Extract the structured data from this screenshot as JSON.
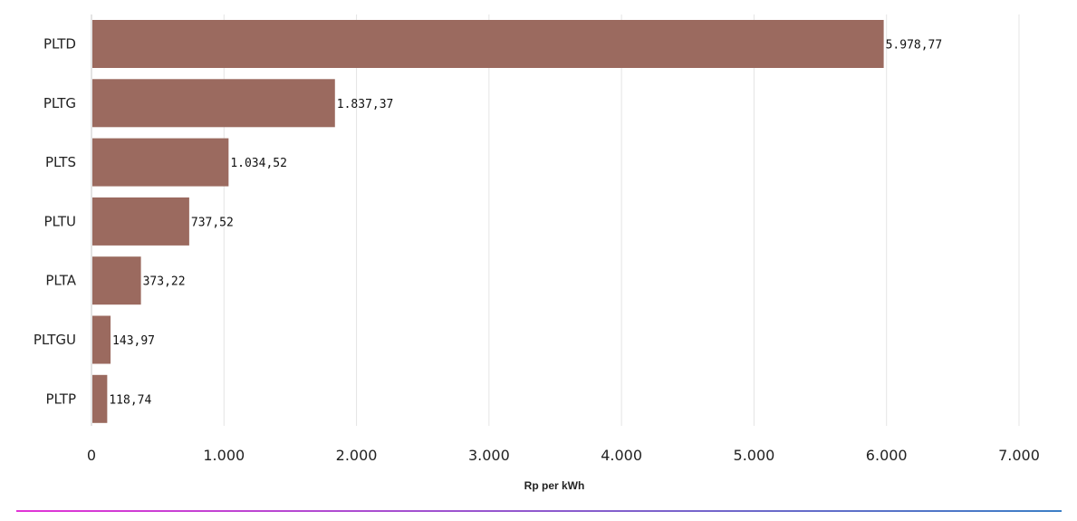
{
  "chart_data": {
    "type": "bar",
    "orientation": "horizontal",
    "categories": [
      "PLTD",
      "PLTG",
      "PLTS",
      "PLTU",
      "PLTA",
      "PLTGU",
      "PLTP"
    ],
    "values": [
      5978.77,
      1837.37,
      1034.52,
      737.52,
      373.22,
      143.97,
      118.74
    ],
    "value_labels": [
      "5.978,77",
      "1.837,37",
      "1.034,52",
      "737,52",
      "373,22",
      "143,97",
      "118,74"
    ],
    "xlabel": "Rp per kWh",
    "xlim": [
      0,
      7000
    ],
    "xticks": [
      0,
      1000,
      2000,
      3000,
      4000,
      5000,
      6000,
      7000
    ],
    "xtick_labels": [
      "0",
      "1.000",
      "2.000",
      "3.000",
      "4.000",
      "5.000",
      "6.000",
      "7.000"
    ],
    "grid": "vertical",
    "bar_color": "#9b6a5f",
    "bottom_line_colors": [
      "#e234d6",
      "#3c7fc6"
    ]
  }
}
